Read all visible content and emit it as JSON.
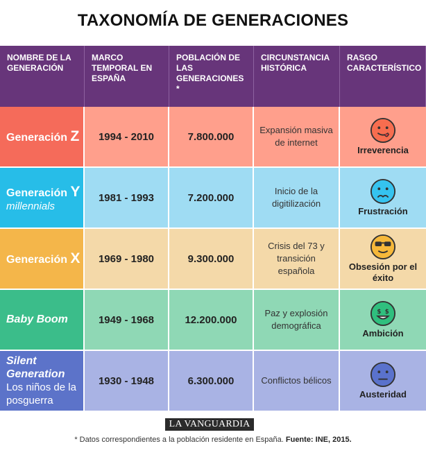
{
  "title": "TAXONOMÍA DE GENERACIONES",
  "headers": {
    "name": "NOMBRE DE LA GENERACIÓN",
    "period": "MARCO TEMPORAL EN ESPAÑA",
    "population": "POBLACIÓN DE LAS GENERACIONES *",
    "history": "CIRCUNSTANCIA HISTÓRICA",
    "trait": "RASGO CARACTERÍSTICO"
  },
  "rows": [
    {
      "name": "Generación",
      "letter": "Z",
      "subname": "",
      "period": "1994 - 2010",
      "population": "7.800.000",
      "history": "Expansión masiva de internet",
      "trait": "Irreverencia",
      "face": "tongue-face-icon",
      "colors": {
        "dark": "#f56b5a",
        "light": "#ff9f8c",
        "face": "#f76d4f"
      }
    },
    {
      "name": "Generación",
      "letter": "Y",
      "subname": "millennials",
      "period": "1981 - 1993",
      "population": "7.200.000",
      "history": "Inicio de la digitilización",
      "trait": "Frustración",
      "face": "sad-face-icon",
      "colors": {
        "dark": "#27bde8",
        "light": "#9fdcf3",
        "face": "#35c3ef"
      }
    },
    {
      "name": "Generación",
      "letter": "X",
      "subname": "",
      "period": "1969 - 1980",
      "population": "9.300.000",
      "history": "Crisis del 73 y transición española",
      "trait": "Obsesión por el éxito",
      "face": "sunglasses-face-icon",
      "colors": {
        "dark": "#f4b64a",
        "light": "#f4d9a9",
        "face": "#f6b83a"
      }
    },
    {
      "name": "Baby Boom",
      "letter": "",
      "subname": "",
      "period": "1949 - 1968",
      "population": "12.200.000",
      "history": "Paz y explosión demográfica",
      "trait": "Ambición",
      "face": "money-face-icon",
      "colors": {
        "dark": "#3bbd8a",
        "light": "#8fd8b5",
        "face": "#2fbf7e"
      }
    },
    {
      "name": "Silent Generation",
      "letter": "",
      "subname": "Los niños de la posguerra",
      "period": "1930 - 1948",
      "population": "6.300.000",
      "history": "Conflictos bélicos",
      "trait": "Austeridad",
      "face": "neutral-face-icon",
      "colors": {
        "dark": "#5c73c9",
        "light": "#a9b3e4",
        "face": "#5a72cc"
      }
    }
  ],
  "logo": "LA VANGUARDIA",
  "footnote": {
    "text": "* Datos correspondientes a la población residente en España. ",
    "source": "Fuente: INE, 2015."
  }
}
